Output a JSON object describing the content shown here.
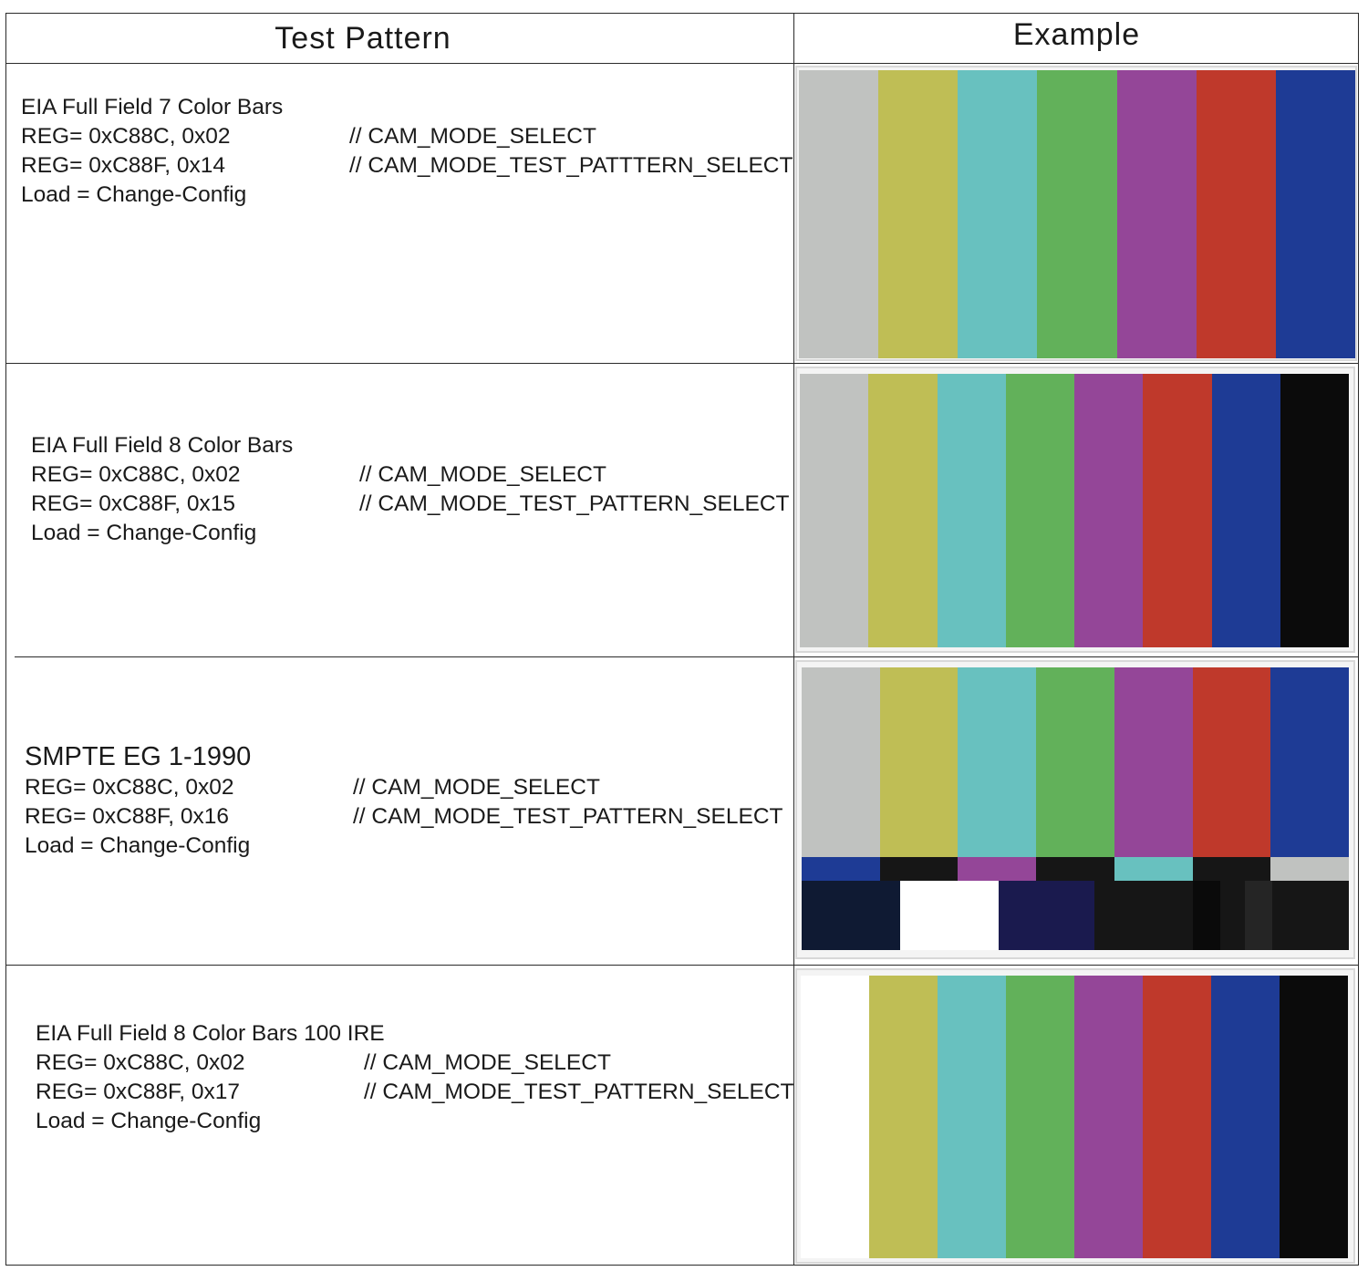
{
  "header": {
    "left": "Test Pattern",
    "right": "Example"
  },
  "rows": [
    {
      "title": "EIA Full Field 7 Color Bars",
      "reg1": "REG= 0xC88C, 0x02",
      "comment1": "// CAM_MODE_SELECT",
      "reg2": "REG= 0xC88F, 0x14",
      "comment2": "// CAM_MODE_TEST_PATTTERN_SELECT",
      "load": "Load = Change-Config",
      "bars": [
        "#c0c2c0",
        "#bfbe55",
        "#68c1bf",
        "#62b15a",
        "#944698",
        "#bf392b",
        "#1e3b95"
      ]
    },
    {
      "title": "EIA Full Field 8 Color Bars",
      "reg1": "REG= 0xC88C, 0x02",
      "comment1": "// CAM_MODE_SELECT",
      "reg2": "REG= 0xC88F, 0x15",
      "comment2": "// CAM_MODE_TEST_PATTERN_SELECT",
      "load": "Load = Change-Config",
      "bars": [
        "#c0c2c0",
        "#bfbe55",
        "#68c1bf",
        "#62b15a",
        "#944698",
        "#bf392b",
        "#1e3b95",
        "#0b0b0b"
      ]
    },
    {
      "title": "SMPTE EG 1-1990",
      "reg1": "REG= 0xC88C, 0x02",
      "comment1": "// CAM_MODE_SELECT",
      "reg2": "REG= 0xC88F, 0x16",
      "comment2": "// CAM_MODE_TEST_PATTERN_SELECT",
      "load": "Load = Change-Config",
      "bars": [
        "#c0c2c0",
        "#bfbe55",
        "#68c1bf",
        "#62b15a",
        "#944698",
        "#bf392b",
        "#1e3b95"
      ],
      "mid_bars": [
        "#1e3b95",
        "#161616",
        "#944698",
        "#161616",
        "#68c1bf",
        "#161616",
        "#c0c2c0"
      ],
      "low_bars": [
        "#0f1a33",
        "#ffffff",
        "#1a1a4e",
        "#161616",
        "#0a0a0a",
        "#161616",
        "#252525",
        "#161616"
      ]
    },
    {
      "title": "EIA Full Field 8 Color Bars 100 IRE",
      "reg1": "REG= 0xC88C, 0x02",
      "comment1": "// CAM_MODE_SELECT",
      "reg2": "REG= 0xC88F, 0x17",
      "comment2": "// CAM_MODE_TEST_PATTERN_SELECT",
      "load": "Load = Change-Config",
      "bars": [
        "#ffffff",
        "#bfbe55",
        "#68c1bf",
        "#62b15a",
        "#944698",
        "#bf392b",
        "#1e3b95",
        "#0b0b0b"
      ]
    }
  ]
}
